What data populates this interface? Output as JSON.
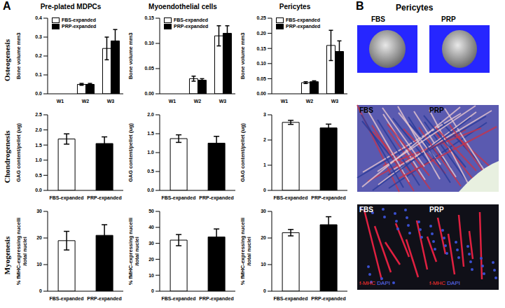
{
  "panel_labels": [
    "A",
    "B"
  ],
  "column_titles": [
    "Pre-plated MDPCs",
    "Myoendothelial cells",
    "Pericytes"
  ],
  "row_titles": [
    "Osteogenesis",
    "Chondrogenesis",
    "Myogenesis"
  ],
  "chart_data": [
    {
      "type": "bar",
      "y_label": "Bone volume mm3",
      "categories": [
        "W1",
        "W2",
        "W3"
      ],
      "series": [
        {
          "name": "FBS-expanded",
          "color": "#ffffff",
          "values": [
            0,
            0.05,
            0.24
          ],
          "errors": [
            0,
            0.005,
            0.06
          ]
        },
        {
          "name": "PRP-expanded",
          "color": "#000000",
          "values": [
            0,
            0.05,
            0.28
          ],
          "errors": [
            0,
            0.005,
            0.06
          ]
        }
      ],
      "ylim": [
        0,
        0.4
      ],
      "yticks": [
        {
          "value": 0,
          "label": "0.0"
        },
        0.1,
        0.2,
        0.3,
        0.4
      ],
      "legend": "upper left"
    },
    {
      "type": "bar",
      "y_label": "Bone volume mm3",
      "categories": [
        "W1",
        "W2",
        "W3"
      ],
      "series": [
        {
          "name": "FBS-expanded",
          "color": "#ffffff",
          "values": [
            0,
            0.03,
            0.115
          ],
          "errors": [
            0,
            0.005,
            0.02
          ]
        },
        {
          "name": "PRP-expanded",
          "color": "#000000",
          "values": [
            0,
            0.027,
            0.12
          ],
          "errors": [
            0,
            0.003,
            0.015
          ]
        }
      ],
      "ylim": [
        0,
        0.15
      ],
      "yticks": [
        {
          "value": 0,
          "label": "0.00"
        },
        0.05,
        {
          "value": 0.1,
          "label": "0.10"
        },
        0.15
      ],
      "legend": "upper left"
    },
    {
      "type": "bar",
      "y_label": "Bone volume mm3",
      "categories": [
        "W1",
        "W2",
        "W3"
      ],
      "series": [
        {
          "name": "FBS-expanded",
          "color": "#ffffff",
          "values": [
            0,
            0.037,
            0.16
          ],
          "errors": [
            0,
            0.003,
            0.05
          ]
        },
        {
          "name": "PRP-expanded",
          "color": "#000000",
          "values": [
            0,
            0.04,
            0.14
          ],
          "errors": [
            0,
            0.003,
            0.035
          ]
        }
      ],
      "ylim": [
        0,
        0.25
      ],
      "yticks": [
        {
          "value": 0,
          "label": "0.00"
        },
        0.05,
        {
          "value": 0.1,
          "label": "0.10"
        },
        0.15,
        {
          "value": 0.2,
          "label": "0.20"
        },
        0.25
      ],
      "legend": "upper left"
    },
    {
      "type": "bar",
      "y_label": "GAG content/pellet (ug)",
      "categories": [
        "FBS-expanded",
        "PRP-expanded"
      ],
      "values": [
        1.7,
        1.55
      ],
      "errors": [
        0.17,
        0.22
      ],
      "colors": [
        "#ffffff",
        "#000000"
      ],
      "ylim": [
        0,
        2.5
      ],
      "yticks": [
        {
          "value": 0,
          "label": "0.0"
        },
        0.5,
        {
          "value": 1,
          "label": "1.0"
        },
        1.5,
        {
          "value": 2,
          "label": "2.0"
        },
        2.5
      ]
    },
    {
      "type": "bar",
      "y_label": "GAG content/pellet (ug)",
      "categories": [
        "FBS-expanded",
        "PRP-expanded"
      ],
      "values": [
        1.37,
        1.25
      ],
      "errors": [
        0.1,
        0.18
      ],
      "colors": [
        "#ffffff",
        "#000000"
      ],
      "ylim": [
        0,
        2
      ],
      "yticks": [
        {
          "value": 0,
          "label": "0.0"
        },
        0.5,
        {
          "value": 1,
          "label": "1.0"
        },
        1.5,
        {
          "value": 2,
          "label": "2.0"
        }
      ]
    },
    {
      "type": "bar",
      "y_label": "GAG content/pellet (ug)",
      "categories": [
        "FBS-expanded",
        "PRP-expanded"
      ],
      "values": [
        2.7,
        2.48
      ],
      "errors": [
        0.08,
        0.15
      ],
      "colors": [
        "#ffffff",
        "#000000"
      ],
      "ylim": [
        0,
        3
      ],
      "yticks": [
        0,
        1,
        2,
        3
      ]
    },
    {
      "type": "bar",
      "y_label": "% fMHC-expressing nucelli /total nuclei",
      "categories": [
        "FBS-expanded",
        "PRP-expanded"
      ],
      "values": [
        19,
        21
      ],
      "errors": [
        3.5,
        4
      ],
      "colors": [
        "#ffffff",
        "#000000"
      ],
      "ylim": [
        0,
        30
      ],
      "yticks": [
        0,
        10,
        20,
        30
      ]
    },
    {
      "type": "bar",
      "y_label": "% fMHC-expressing nucelli /total nuclei",
      "categories": [
        "FBS-expanded",
        "PRP-expanded"
      ],
      "values": [
        32,
        34
      ],
      "errors": [
        3.5,
        5
      ],
      "colors": [
        "#ffffff",
        "#000000"
      ],
      "ylim": [
        0,
        50
      ],
      "yticks": [
        0,
        10,
        20,
        30,
        40,
        50
      ]
    },
    {
      "type": "bar",
      "y_label": "% fMHC-expressing nucelli /total nuclei",
      "categories": [
        "FBS-expanded",
        "PRP-expanded"
      ],
      "values": [
        22,
        25
      ],
      "errors": [
        1.2,
        3
      ],
      "colors": [
        "#ffffff",
        "#000000"
      ],
      "ylim": [
        0,
        30
      ],
      "yticks": [
        0,
        10,
        20,
        30
      ]
    }
  ],
  "panel_b": {
    "title": "Pericytes",
    "image_labels": [
      "FBS",
      "PRP"
    ],
    "stain_labels": [
      "f-MHC",
      "DAPI"
    ]
  }
}
